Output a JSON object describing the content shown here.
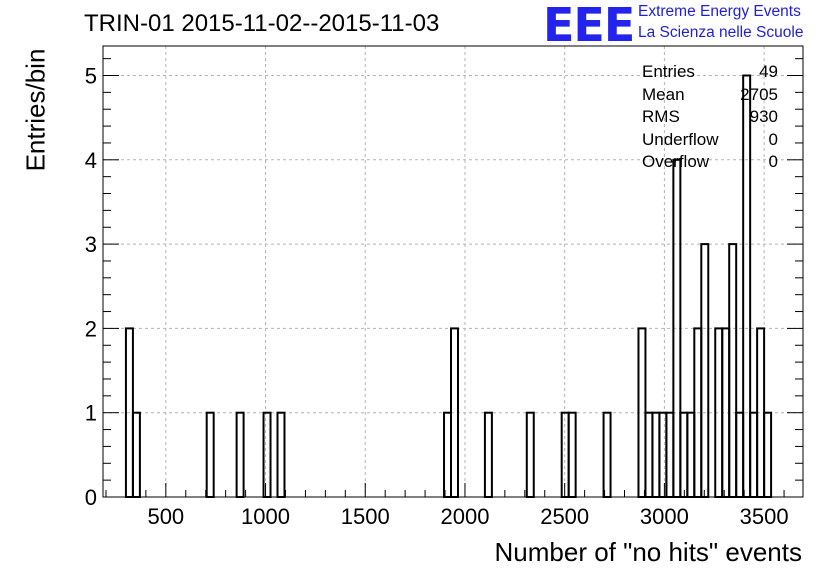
{
  "title": "TRIN-01 2015-11-02--2015-11-03",
  "logo": {
    "mark": "EEE",
    "line1": "Extreme Energy Events",
    "line2": "La Scienza nelle Scuole",
    "color": "#2323ee"
  },
  "stats": [
    {
      "label": "Entries",
      "value": "49"
    },
    {
      "label": "Mean",
      "value": "2705"
    },
    {
      "label": "RMS",
      "value": "930"
    },
    {
      "label": "Underflow",
      "value": "0"
    },
    {
      "label": "Overflow",
      "value": "0"
    }
  ],
  "chart_data": {
    "type": "bar",
    "histogram": true,
    "xlabel": "Number of \"no hits\" events",
    "ylabel": "Entries/bin",
    "xlim": [
      185,
      3695
    ],
    "ylim": [
      0,
      5.35
    ],
    "xticks": [
      500,
      1000,
      1500,
      2000,
      2500,
      3000,
      3500
    ],
    "yticks": [
      0,
      1,
      2,
      3,
      4,
      5
    ],
    "grid": true,
    "bin_width": 35,
    "bins": [
      {
        "x0": 300,
        "x1": 335,
        "count": 2
      },
      {
        "x0": 335,
        "x1": 370,
        "count": 1
      },
      {
        "x0": 705,
        "x1": 740,
        "count": 1
      },
      {
        "x0": 855,
        "x1": 890,
        "count": 1
      },
      {
        "x0": 990,
        "x1": 1025,
        "count": 1
      },
      {
        "x0": 1060,
        "x1": 1095,
        "count": 1
      },
      {
        "x0": 1895,
        "x1": 1930,
        "count": 1
      },
      {
        "x0": 1930,
        "x1": 1965,
        "count": 2
      },
      {
        "x0": 2100,
        "x1": 2135,
        "count": 1
      },
      {
        "x0": 2310,
        "x1": 2345,
        "count": 1
      },
      {
        "x0": 2485,
        "x1": 2520,
        "count": 1
      },
      {
        "x0": 2520,
        "x1": 2555,
        "count": 1
      },
      {
        "x0": 2695,
        "x1": 2730,
        "count": 1
      },
      {
        "x0": 2870,
        "x1": 2905,
        "count": 2
      },
      {
        "x0": 2905,
        "x1": 2940,
        "count": 1
      },
      {
        "x0": 2940,
        "x1": 2975,
        "count": 1
      },
      {
        "x0": 2975,
        "x1": 3010,
        "count": 1
      },
      {
        "x0": 3010,
        "x1": 3045,
        "count": 1
      },
      {
        "x0": 3045,
        "x1": 3080,
        "count": 4
      },
      {
        "x0": 3080,
        "x1": 3115,
        "count": 1
      },
      {
        "x0": 3115,
        "x1": 3150,
        "count": 1
      },
      {
        "x0": 3150,
        "x1": 3185,
        "count": 2
      },
      {
        "x0": 3185,
        "x1": 3220,
        "count": 3
      },
      {
        "x0": 3255,
        "x1": 3290,
        "count": 2
      },
      {
        "x0": 3290,
        "x1": 3325,
        "count": 2
      },
      {
        "x0": 3325,
        "x1": 3360,
        "count": 3
      },
      {
        "x0": 3360,
        "x1": 3395,
        "count": 1
      },
      {
        "x0": 3395,
        "x1": 3430,
        "count": 5
      },
      {
        "x0": 3430,
        "x1": 3465,
        "count": 1
      },
      {
        "x0": 3465,
        "x1": 3500,
        "count": 2
      },
      {
        "x0": 3500,
        "x1": 3535,
        "count": 1
      }
    ]
  }
}
